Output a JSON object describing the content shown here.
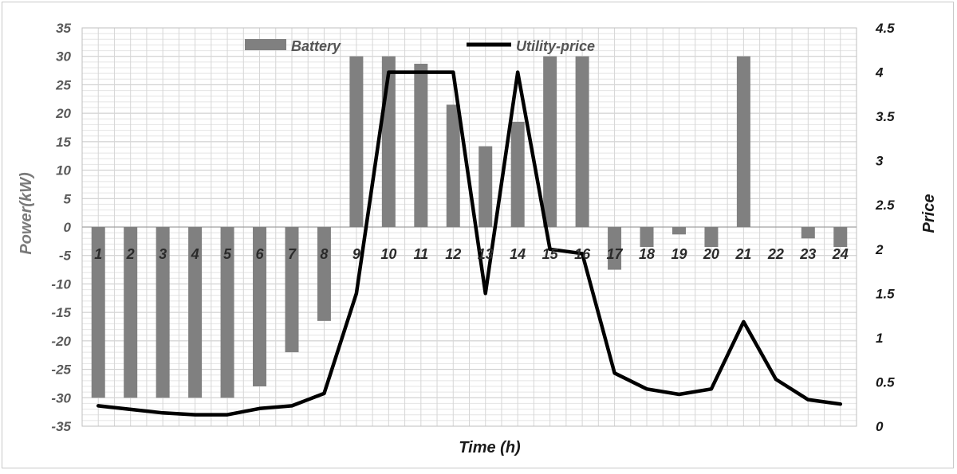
{
  "chart_data": {
    "type": "bar",
    "categories": [
      "1",
      "2",
      "3",
      "4",
      "5",
      "6",
      "7",
      "8",
      "9",
      "10",
      "11",
      "12",
      "13",
      "14",
      "15",
      "16",
      "17",
      "18",
      "19",
      "20",
      "21",
      "22",
      "23",
      "24"
    ],
    "series": [
      {
        "name": "Battery",
        "type": "bar",
        "axis": "left",
        "color": "#808080",
        "values": [
          -30,
          -30,
          -30,
          -30,
          -30,
          -28,
          -22,
          -16.5,
          30,
          30,
          28.7,
          21.5,
          14.2,
          18.5,
          30,
          30,
          -7.5,
          -3.5,
          -1.3,
          -3.5,
          30,
          0,
          -2,
          -3.5
        ]
      },
      {
        "name": "Utility-price",
        "type": "line",
        "axis": "right",
        "color": "#000000",
        "values": [
          0.23,
          0.19,
          0.15,
          0.13,
          0.13,
          0.2,
          0.23,
          0.37,
          1.5,
          4.0,
          4.0,
          4.0,
          1.5,
          4.0,
          2.0,
          1.95,
          0.6,
          0.42,
          0.36,
          0.42,
          1.18,
          0.53,
          0.3,
          0.25
        ]
      }
    ],
    "xlabel": "Time (h)",
    "ylabel": "Power(kW)",
    "y2label": "Price",
    "ylim": [
      -35,
      35
    ],
    "y2lim": [
      0,
      4.5
    ],
    "yticks": [
      "35",
      "30",
      "25",
      "20",
      "15",
      "10",
      "5",
      "0",
      "-5",
      "-10",
      "-15",
      "-20",
      "-25",
      "-30",
      "-35"
    ],
    "y2ticks": [
      "4.5",
      "4",
      "3.5",
      "3",
      "2.5",
      "2",
      "1.5",
      "1",
      "0.5",
      "0"
    ],
    "grid": true,
    "legend": "top"
  }
}
